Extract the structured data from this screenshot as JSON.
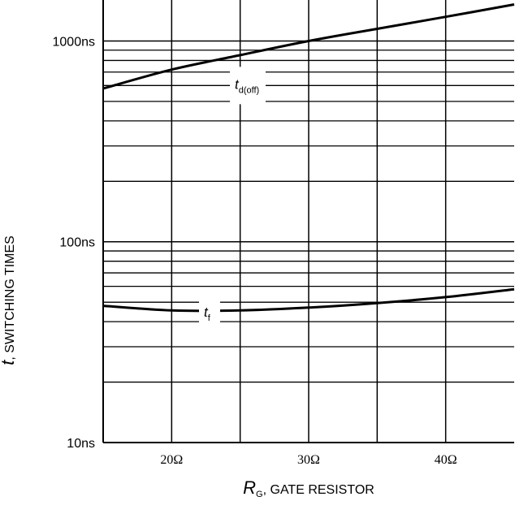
{
  "chart_data": {
    "type": "line",
    "title": "",
    "xlabel_symbol": "R",
    "xlabel_sub": "G",
    "xlabel_text": ", GATE RESISTOR",
    "ylabel_symbol": "t",
    "ylabel_text": ", SWITCHING TIMES",
    "xlim": [
      15,
      45
    ],
    "ylim": [
      10,
      1600
    ],
    "yscale": "log",
    "grid": true,
    "x_ticks": [
      {
        "value": 20,
        "label": "20Ω"
      },
      {
        "value": 30,
        "label": "30Ω"
      },
      {
        "value": 40,
        "label": "40Ω"
      }
    ],
    "y_ticks": [
      {
        "value": 10,
        "label": "10ns"
      },
      {
        "value": 100,
        "label": "100ns"
      },
      {
        "value": 1000,
        "label": "1000ns"
      }
    ],
    "series": [
      {
        "name_symbol": "t",
        "name_sub": "d(off)",
        "x": [
          15,
          20,
          25,
          30,
          35,
          40,
          45
        ],
        "y": [
          580,
          720,
          850,
          1000,
          1150,
          1320,
          1520
        ]
      },
      {
        "name_symbol": "t",
        "name_sub": "f",
        "x": [
          15,
          20,
          25,
          30,
          35,
          40,
          45
        ],
        "y": [
          48,
          45.5,
          45.5,
          47,
          49.5,
          53,
          58
        ]
      }
    ]
  }
}
